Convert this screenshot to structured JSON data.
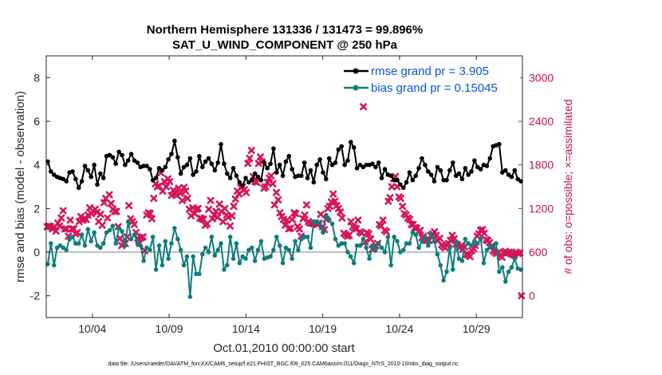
{
  "chart_data": {
    "type": "line",
    "title_line1": "Northern Hemisphere 131336 / 131473 = 99.896%",
    "title_line2": "SAT_U_WIND_COMPONENT @ 250 hPa",
    "xlabel": "Oct.01,2010 00:00:00 start",
    "ylabel": "rmse and bias (model - observation)",
    "ylabel_right": "# of obs: o=possible; ×=assimilated",
    "footer": "data file: /Users/raeder/DAI/ATM_forcXX/CAM6_setup/f.e21.FHIST_BGC.f09_025.CAM6assim.011/Diags_NTrS_2010-10/obs_diag_output.nc",
    "x_range_days": [
      0.5,
      31.5
    ],
    "x_ticks": [
      {
        "day": 3.5,
        "label": "10/04"
      },
      {
        "day": 8.5,
        "label": "10/09"
      },
      {
        "day": 13.5,
        "label": "10/14"
      },
      {
        "day": 18.5,
        "label": "10/19"
      },
      {
        "day": 23.5,
        "label": "10/24"
      },
      {
        "day": 28.5,
        "label": "10/29"
      }
    ],
    "ylim": [
      -3,
      9
    ],
    "y_ticks": [
      -2,
      0,
      2,
      4,
      6,
      8
    ],
    "ylim_right": [
      -300,
      3300
    ],
    "y_ticks_right": [
      0,
      600,
      1200,
      1800,
      2400,
      3000
    ],
    "zero_line": 0,
    "legend_position": "top-right",
    "colors": {
      "rmse": "#000000",
      "bias": "#0f7d7d",
      "obs": "#d6145a",
      "zero_line": "#c0c0c0",
      "right_axis": "#c8104e",
      "legend_text": "#0a55d6"
    },
    "series": [
      {
        "name": "rmse grand pr = 3.905",
        "axis": "left",
        "marker": "circle",
        "values": [
          4.15,
          3.7,
          3.55,
          3.45,
          3.4,
          3.35,
          3.25,
          3.65,
          3.7,
          3.35,
          2.95,
          3.25,
          3.95,
          3.75,
          3.45,
          4.0,
          3.1,
          3.6,
          3.4,
          4.4,
          4.45,
          4.35,
          4.05,
          4.6,
          4.45,
          4.0,
          4.2,
          4.5,
          4.2,
          4.1,
          3.9,
          3.95,
          3.95,
          3.8,
          3.3,
          3.4,
          3.85,
          3.75,
          3.9,
          4.25,
          4.5,
          5.1,
          4.35,
          3.6,
          3.9,
          4.0,
          4.3,
          3.55,
          3.7,
          4.4,
          3.9,
          4.15,
          4.3,
          4.05,
          3.75,
          4.1,
          4.95,
          4.05,
          3.6,
          3.4,
          3.85,
          3.5,
          3.2,
          3.05,
          3.4,
          3.2,
          3.3,
          3.6,
          3.45,
          3.3,
          4.1,
          3.85,
          4.05,
          4.75,
          3.65,
          4.0,
          3.5,
          4.15,
          4.4,
          3.8,
          3.45,
          3.5,
          3.5,
          4.1,
          3.4,
          3.75,
          3.2,
          4.0,
          4.25,
          3.65,
          3.35,
          4.3,
          4.0,
          4.1,
          4.7,
          4.85,
          4.0,
          4.2,
          5.05,
          4.8,
          3.85,
          4.0,
          3.9,
          4.0,
          4.0,
          4.05,
          3.9,
          4.1,
          3.4,
          3.8,
          3.55,
          3.5,
          3.3,
          3.3,
          3.1,
          2.95,
          3.2,
          3.65,
          3.3,
          3.5,
          3.85,
          4.3,
          4.0,
          3.7,
          3.55,
          3.25,
          3.9,
          3.75,
          3.3,
          3.3,
          3.75,
          4.1,
          3.5,
          3.6,
          3.35,
          3.85,
          3.55,
          3.7,
          4.2,
          3.9,
          3.8,
          4.0,
          3.95,
          4.3,
          4.85,
          4.9,
          4.95,
          3.65,
          3.75,
          3.55,
          3.45,
          3.75,
          3.35,
          3.25
        ]
      },
      {
        "name": "bias grand pr = 0.15045",
        "axis": "left",
        "marker": "circle",
        "values": [
          -0.55,
          0.4,
          -0.6,
          0.2,
          0.3,
          0.2,
          0.1,
          0.6,
          0.7,
          0.4,
          0.4,
          0.8,
          0.3,
          1.05,
          0.5,
          0.9,
          0.3,
          0.2,
          0.4,
          0.9,
          1.0,
          1.2,
          0.4,
          1.1,
          0.95,
          0.3,
          1.4,
          0.6,
          0.8,
          0.4,
          0.3,
          -0.4,
          0.2,
          0.1,
          0.7,
          -0.8,
          0.3,
          -0.6,
          0.5,
          -0.3,
          0.4,
          1.1,
          0.6,
          0.1,
          -0.6,
          -0.2,
          -2.05,
          -0.2,
          -1.0,
          -1.0,
          -0.1,
          0.2,
          0.0,
          0.7,
          -0.15,
          0.1,
          0.4,
          -0.8,
          -0.6,
          0.7,
          -0.3,
          0.4,
          -0.5,
          -0.2,
          -0.3,
          0.1,
          0.2,
          -0.4,
          0.1,
          0.5,
          -0.3,
          -0.25,
          -0.2,
          0.1,
          0.7,
          0.3,
          -0.5,
          0.2,
          0.1,
          -0.3,
          0.5,
          0.1,
          0.6,
          0.7,
          0.7,
          0.2,
          1.4,
          1.4,
          1.3,
          0.9,
          1.7,
          1.5,
          1.3,
          0.6,
          0.3,
          0.4,
          0.4,
          0.0,
          -0.2,
          -0.5,
          0.3,
          0.3,
          0.6,
          0.2,
          -0.3,
          0.3,
          0.1,
          0.4,
          0.2,
          0.0,
          0.7,
          -0.6,
          0.7,
          0.5,
          0.0,
          0.1,
          0.4,
          0.4,
          0.9,
          0.8,
          0.2,
          0.5,
          0.7,
          0.3,
          0.8,
          0.5,
          -0.1,
          -0.6,
          -1.3,
          -0.9,
          0.2,
          -0.8,
          0.5,
          -0.3,
          -0.4,
          0.6,
          0.4,
          0.3,
          0.5,
          0.4,
          0.6,
          -0.5,
          0.1,
          0.3,
          0.2,
          0.4,
          -0.9,
          -0.7,
          -1.35,
          -0.9,
          -0.7,
          -0.3,
          -0.75,
          -0.8
        ]
      },
      {
        "name": "# of obs",
        "axis": "right",
        "marker": "x",
        "values": [
          950,
          960,
          950,
          920,
          940,
          890,
          1000,
          960,
          1070,
          1170,
          920,
          920,
          820,
          1040,
          920,
          920,
          850,
          870,
          1020,
          1090,
          1040,
          1060,
          1050,
          1110,
          1210,
          1130,
          1160,
          1190,
          1150,
          1020,
          1120,
          970,
          1280,
          1340,
          1070,
          1390,
          1270,
          1190,
          1160,
          1160,
          950,
          790,
          690,
          730,
          720,
          810,
          1240,
          1060,
          1020,
          980,
          870,
          790,
          720,
          800,
          810,
          620,
          1110,
          1140,
          1130,
          1060,
          1340,
          1540,
          1500,
          1510,
          1690,
          1440,
          1570,
          1500,
          1610,
          1570,
          1380,
          1450,
          1400,
          1380,
          1480,
          1410,
          1310,
          1490,
          1440,
          1340,
          1190,
          1100,
          1210,
          1130,
          1190,
          1200,
          1070,
          1060,
          1050,
          970,
          990,
          1190,
          1310,
          1060,
          1110,
          1160,
          1080,
          1260,
          1160,
          1020,
          1200,
          1110,
          1080,
          960,
          1100,
          1230,
          1330,
          1440,
          1400,
          1490,
          1500,
          1460,
          1420,
          1820,
          1890,
          2000,
          1640,
          1570,
          1560,
          1820,
          1910,
          1840,
          1480,
          1500,
          1560,
          1620,
          1650,
          1540,
          1250,
          1420,
          1320,
          1140,
          1090,
          1050,
          970,
          1040,
          920,
          930,
          1050,
          1140,
          1130,
          950,
          920,
          820,
          1060,
          1110,
          1250,
          1020,
          1000,
          1000,
          990,
          1000,
          980,
          1000,
          1120,
          950,
          910,
          1050,
          1200,
          1230,
          1290,
          1400,
          1300,
          1240,
          1200,
          1150,
          1070,
          860,
          840,
          820,
          830,
          1020,
          950,
          930,
          920,
          1040,
          880,
          860,
          2600,
          740,
          870,
          850,
          780,
          640,
          660,
          690,
          720,
          980,
          960,
          1040,
          900,
          880,
          1300,
          1350,
          1500,
          1610,
          1640,
          1500,
          1360,
          1340,
          1230,
          1130,
          1110,
          1070,
          1050,
          980,
          980,
          940,
          930,
          880,
          900,
          800,
          820,
          760,
          760,
          760,
          830,
          850,
          880,
          830,
          760,
          790,
          700,
          680,
          660,
          700,
          720,
          760,
          830,
          780,
          710,
          700,
          660,
          690,
          640,
          670,
          570,
          560,
          540,
          620,
          650,
          690,
          820,
          850,
          900,
          910,
          860,
          770,
          760,
          730,
          680,
          620,
          600,
          580,
          600,
          550,
          530,
          590,
          610,
          590,
          600,
          580,
          570,
          560,
          600,
          580,
          590,
          0
        ]
      }
    ]
  }
}
